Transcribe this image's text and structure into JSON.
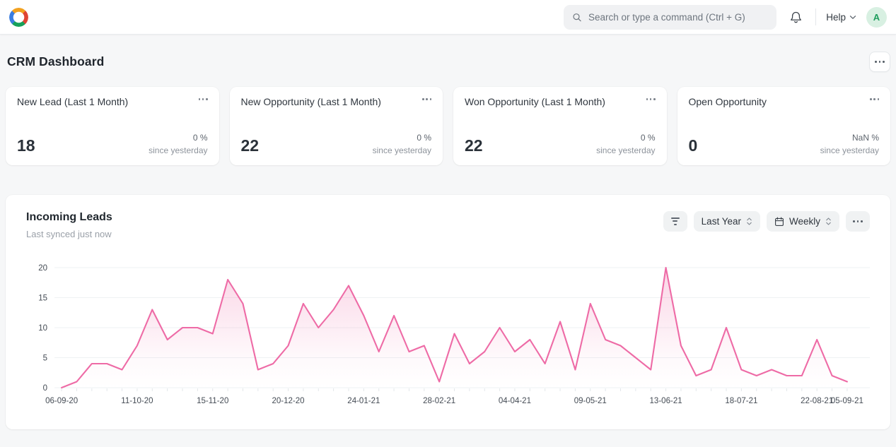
{
  "navbar": {
    "search_placeholder": "Search or type a command (Ctrl + G)",
    "help_label": "Help",
    "avatar_initial": "A"
  },
  "page": {
    "title": "CRM Dashboard"
  },
  "stat_cards": [
    {
      "title": "New Lead (Last 1 Month)",
      "value": "18",
      "delta": "0 %",
      "caption": "since yesterday"
    },
    {
      "title": "New Opportunity (Last 1 Month)",
      "value": "22",
      "delta": "0 %",
      "caption": "since yesterday"
    },
    {
      "title": "Won Opportunity (Last 1 Month)",
      "value": "22",
      "delta": "0 %",
      "caption": "since yesterday"
    },
    {
      "title": "Open Opportunity",
      "value": "0",
      "delta": "NaN %",
      "caption": "since yesterday"
    }
  ],
  "chart_card": {
    "title": "Incoming Leads",
    "subtitle": "Last synced just now",
    "range_select_value": "Last Year",
    "interval_select_value": "Weekly"
  },
  "chart_data": {
    "type": "line",
    "title": "Incoming Leads",
    "interval": "Weekly",
    "range": "Last Year",
    "values": [
      0,
      1,
      4,
      4,
      3,
      7,
      13,
      8,
      10,
      10,
      9,
      18,
      14,
      3,
      4,
      7,
      14,
      10,
      13,
      17,
      12,
      6,
      12,
      6,
      7,
      1,
      9,
      4,
      6,
      10,
      6,
      8,
      4,
      11,
      3,
      14,
      8,
      7,
      5,
      3,
      20,
      7,
      2,
      3,
      10,
      3,
      2,
      3,
      2,
      2,
      8,
      2,
      1
    ],
    "x_tick_labels": [
      "06-09-20",
      "11-10-20",
      "15-11-20",
      "20-12-20",
      "24-01-21",
      "28-02-21",
      "04-04-21",
      "09-05-21",
      "13-06-21",
      "18-07-21",
      "22-08-21",
      "05-09-21"
    ],
    "x_tick_indices": [
      0,
      5,
      10,
      15,
      20,
      25,
      30,
      35,
      40,
      45,
      50,
      52
    ],
    "y_ticks": [
      0,
      5,
      10,
      15,
      20
    ],
    "ylim": [
      0,
      20
    ],
    "grid": true,
    "legend_position": "none",
    "line_color": "#ee6ba6",
    "area_color": "#ee6ba6",
    "grid_color": "#eef1f3",
    "axis_text_color": "#454c55"
  },
  "colors": {
    "accent_pink": "#ee6ba6",
    "avatar_bg": "#d8f0e2",
    "avatar_text": "#1f9e5e",
    "page_bg": "#f6f7f8",
    "card_bg": "#ffffff"
  },
  "icons": {
    "search": "magnifier glyph",
    "bell": "notification bell outline",
    "chevron-down": "v",
    "unfold": "up-down chevrons",
    "calendar": "calendar outline",
    "filter": "three shrinking lines",
    "ellipsis": "three dots"
  }
}
